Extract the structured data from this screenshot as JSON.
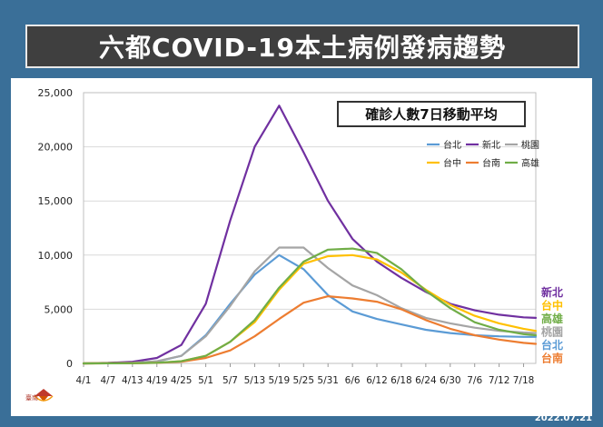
{
  "title": "六都COVID-19本土病例發病趨勢",
  "footer_date": "2022.07.21",
  "chart_data": {
    "type": "line",
    "subtitle": "確診人數7日移動平均",
    "x_tick_labels": [
      "4/1",
      "4/7",
      "4/13",
      "4/19",
      "4/25",
      "5/1",
      "5/7",
      "5/13",
      "5/19",
      "5/25",
      "5/31",
      "6/6",
      "6/12",
      "6/18",
      "6/24",
      "6/30",
      "7/6",
      "7/12",
      "7/18"
    ],
    "y_tick_labels": [
      "0",
      "5,000",
      "10,000",
      "15,000",
      "20,000",
      "25,000"
    ],
    "ylim": [
      0,
      25000
    ],
    "x_dates": [
      "4/1",
      "4/7",
      "4/13",
      "4/19",
      "4/25",
      "5/1",
      "5/7",
      "5/13",
      "5/19",
      "5/25",
      "5/31",
      "6/6",
      "6/12",
      "6/18",
      "6/24",
      "6/30",
      "7/6",
      "7/12",
      "7/18",
      "7/21"
    ],
    "legend_position": "top-right",
    "grid": "horizontal",
    "series": [
      {
        "name": "台北",
        "color": "#5b9bd5",
        "values": [
          0,
          20,
          60,
          180,
          700,
          2600,
          5500,
          8200,
          10000,
          8700,
          6300,
          4800,
          4100,
          3600,
          3100,
          2800,
          2600,
          2500,
          2450,
          2450
        ]
      },
      {
        "name": "新北",
        "color": "#7030a0",
        "values": [
          0,
          50,
          150,
          500,
          1700,
          5500,
          13200,
          20000,
          23800,
          19500,
          15000,
          11500,
          9400,
          7900,
          6600,
          5500,
          4900,
          4500,
          4250,
          4200
        ]
      },
      {
        "name": "桃園",
        "color": "#a5a5a5",
        "values": [
          0,
          20,
          60,
          200,
          700,
          2500,
          5300,
          8500,
          10700,
          10700,
          8800,
          7200,
          6300,
          5100,
          4200,
          3700,
          3300,
          3000,
          2850,
          2800
        ]
      },
      {
        "name": "台中",
        "color": "#ffc000",
        "values": [
          0,
          10,
          20,
          60,
          200,
          700,
          2000,
          3800,
          6800,
          9200,
          9900,
          10000,
          9600,
          8400,
          6800,
          5400,
          4400,
          3700,
          3200,
          3000
        ]
      },
      {
        "name": "台南",
        "color": "#ed7d31",
        "values": [
          0,
          10,
          20,
          50,
          150,
          500,
          1200,
          2500,
          4100,
          5600,
          6200,
          6000,
          5700,
          5000,
          4000,
          3200,
          2600,
          2200,
          1900,
          1800
        ]
      },
      {
        "name": "高雄",
        "color": "#70ad47",
        "values": [
          0,
          10,
          20,
          60,
          200,
          700,
          2000,
          4000,
          7000,
          9400,
          10500,
          10600,
          10200,
          8700,
          6700,
          5100,
          3800,
          3100,
          2700,
          2600
        ]
      }
    ],
    "end_labels": [
      {
        "text": "新北",
        "color": "#7030a0"
      },
      {
        "text": "台中",
        "color": "#ffc000"
      },
      {
        "text": "高雄",
        "color": "#70ad47"
      },
      {
        "text": "桃園",
        "color": "#a5a5a5"
      },
      {
        "text": "台北",
        "color": "#5b9bd5"
      },
      {
        "text": "台南",
        "color": "#ed7d31"
      }
    ],
    "legend_rows": [
      [
        "台北",
        "新北",
        "桃園"
      ],
      [
        "台中",
        "台南",
        "高雄"
      ]
    ]
  },
  "logo": {
    "text": "臺南",
    "icon": "tainan-logo-icon"
  }
}
